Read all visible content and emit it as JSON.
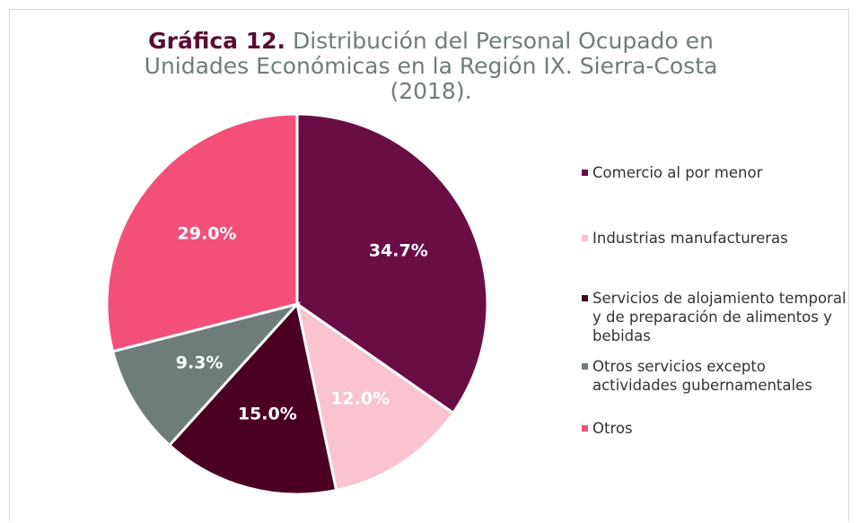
{
  "chart_data": {
    "type": "pie",
    "title": "Gráfica 12.",
    "subtitle": "Distribución del Personal Ocupado en Unidades Económicas en la Región IX. Sierra-Costa (2018).",
    "categories": [
      "Comercio al por menor",
      "Industrias manufactureras",
      "Servicios de alojamiento temporal y de preparación de alimentos y bebidas",
      "Otros servicios excepto actividades gubernamentales",
      "Otros"
    ],
    "values": [
      34.7,
      12.0,
      15.0,
      9.3,
      29.0
    ],
    "value_labels": [
      "34.7%",
      "12.0%",
      "15.0%",
      "9.3%",
      "29.0%"
    ],
    "colors": [
      "#6a0d45",
      "#f9c3cf",
      "#4b0021",
      "#6f7d7a",
      "#f2507b"
    ],
    "legend": "right"
  }
}
